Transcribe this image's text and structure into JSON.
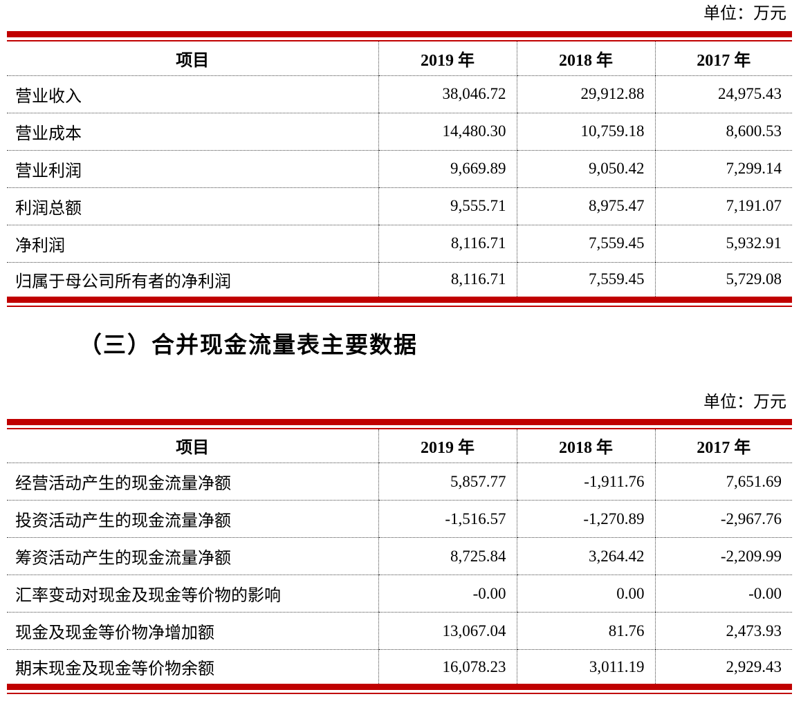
{
  "page": {
    "unit_label": "单位：万元",
    "section_heading": "（三）合并现金流量表主要数据"
  },
  "income_table": {
    "headers": [
      "项目",
      "2019 年",
      "2018 年",
      "2017 年"
    ],
    "rows": [
      {
        "label": "营业收入",
        "values": [
          "38,046.72",
          "29,912.88",
          "24,975.43"
        ]
      },
      {
        "label": "营业成本",
        "values": [
          "14,480.30",
          "10,759.18",
          "8,600.53"
        ]
      },
      {
        "label": "营业利润",
        "values": [
          "9,669.89",
          "9,050.42",
          "7,299.14"
        ]
      },
      {
        "label": "利润总额",
        "values": [
          "9,555.71",
          "8,975.47",
          "7,191.07"
        ]
      },
      {
        "label": "净利润",
        "values": [
          "8,116.71",
          "7,559.45",
          "5,932.91"
        ]
      },
      {
        "label": "归属于母公司所有者的净利润",
        "values": [
          "8,116.71",
          "7,559.45",
          "5,729.08"
        ]
      }
    ]
  },
  "cashflow_table": {
    "headers": [
      "项目",
      "2019 年",
      "2018 年",
      "2017 年"
    ],
    "rows": [
      {
        "label": "经营活动产生的现金流量净额",
        "values": [
          "5,857.77",
          "-1,911.76",
          "7,651.69"
        ]
      },
      {
        "label": "投资活动产生的现金流量净额",
        "values": [
          "-1,516.57",
          "-1,270.89",
          "-2,967.76"
        ]
      },
      {
        "label": "筹资活动产生的现金流量净额",
        "values": [
          "8,725.84",
          "3,264.42",
          "-2,209.99"
        ]
      },
      {
        "label": "汇率变动对现金及现金等价物的影响",
        "values": [
          "-0.00",
          "0.00",
          "-0.00"
        ]
      },
      {
        "label": "现金及现金等价物净增加额",
        "values": [
          "13,067.04",
          "81.76",
          "2,473.93"
        ]
      },
      {
        "label": "期末现金及现金等价物余额",
        "values": [
          "16,078.23",
          "3,011.19",
          "2,929.43"
        ]
      }
    ]
  },
  "colors": {
    "accent_red": "#c00000",
    "grid_dotted": "#444444"
  }
}
